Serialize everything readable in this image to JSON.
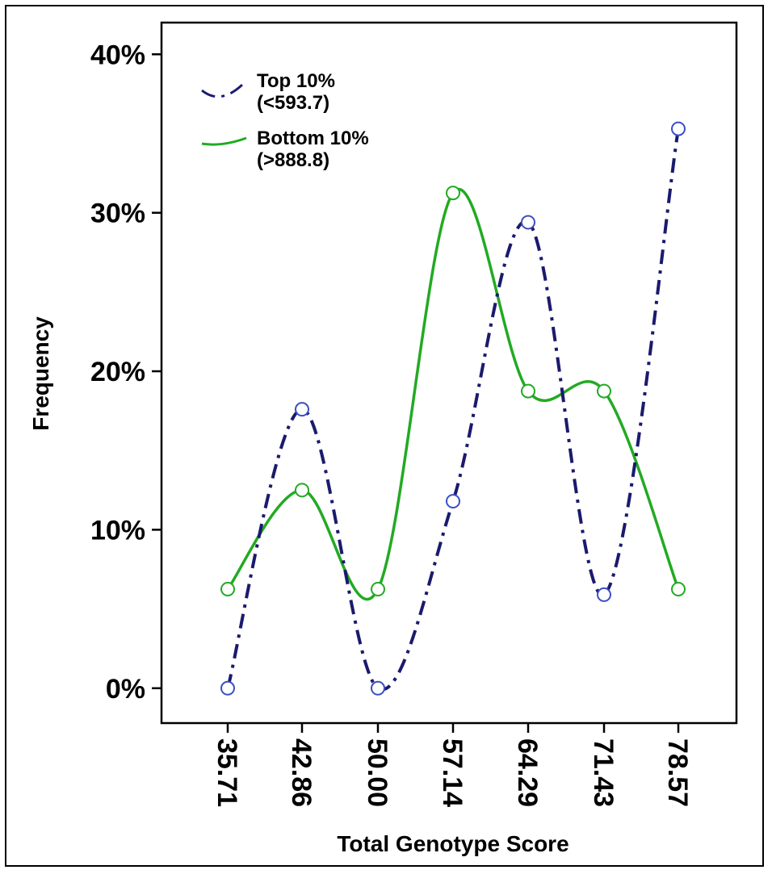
{
  "chart_data": {
    "type": "line",
    "title": "",
    "xlabel": "Total Genotype Score",
    "ylabel": "Frequency",
    "categories": [
      "35.71",
      "42.86",
      "50.00",
      "57.14",
      "64.29",
      "71.43",
      "78.57"
    ],
    "y_ticks": [
      "0%",
      "10%",
      "20%",
      "30%",
      "40%"
    ],
    "ylim": [
      -0.022,
      0.42
    ],
    "grid": false,
    "legend_position": "top-left",
    "series": [
      {
        "name": "Top 10%",
        "name_line2": "(<593.7)",
        "values": [
          0.0,
          0.176,
          0.0,
          0.118,
          0.294,
          0.059,
          0.353
        ],
        "color": "#1a1a6e",
        "marker_color": "#3b4fc4",
        "line_style": "dash-dot"
      },
      {
        "name": "Bottom 10%",
        "name_line2": "(>888.8)",
        "values": [
          0.0625,
          0.125,
          0.0625,
          0.3125,
          0.1875,
          0.1875,
          0.0625
        ],
        "color": "#22aa22",
        "marker_color": "#22aa22",
        "line_style": "solid"
      }
    ]
  }
}
